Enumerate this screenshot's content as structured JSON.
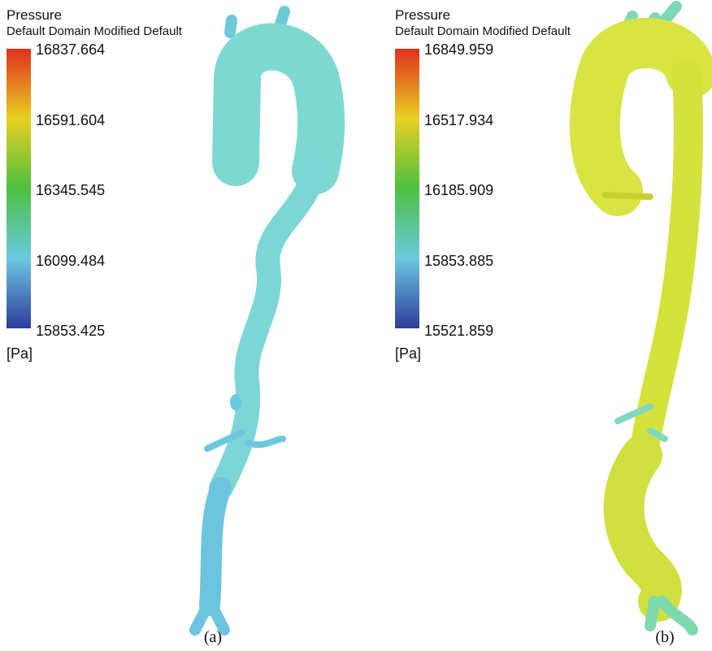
{
  "panels": [
    {
      "title": "Pressure",
      "subtitle": "Default Domain Modified Default",
      "scale_labels": [
        16837.664,
        16591.604,
        16345.545,
        16099.484,
        15853.425
      ],
      "unit": "[Pa]",
      "caption": "(a)"
    },
    {
      "title": "Pressure",
      "subtitle": "Default Domain Modified Default",
      "scale_labels": [
        16849.959,
        16517.934,
        16185.909,
        15853.885,
        15521.859
      ],
      "unit": "[Pa]",
      "caption": "(b)"
    }
  ]
}
